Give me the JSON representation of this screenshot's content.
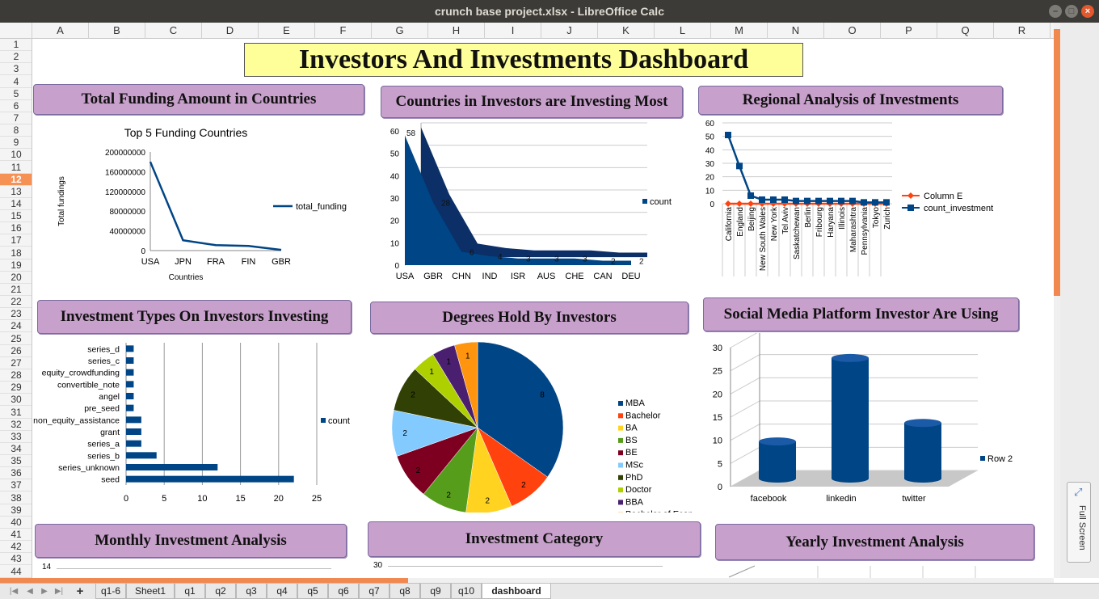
{
  "window": {
    "title": "crunch base project.xlsx - LibreOffice Calc"
  },
  "columns": [
    "A",
    "B",
    "C",
    "D",
    "E",
    "F",
    "G",
    "H",
    "I",
    "J",
    "K",
    "L",
    "M",
    "N",
    "O",
    "P",
    "Q",
    "R"
  ],
  "rows": [
    "1",
    "2",
    "3",
    "4",
    "5",
    "6",
    "7",
    "8",
    "9",
    "10",
    "11",
    "12",
    "13",
    "14",
    "15",
    "16",
    "17",
    "18",
    "19",
    "20",
    "21",
    "22",
    "23",
    "24",
    "25",
    "26",
    "27",
    "28",
    "29",
    "30",
    "31",
    "32",
    "33",
    "34",
    "35",
    "36",
    "37",
    "38",
    "39",
    "40",
    "41",
    "42",
    "43",
    "44"
  ],
  "selected_row": "12",
  "dashboard": {
    "title": "Investors And Investments Dashboard",
    "sections": {
      "total_funding": "Total Funding Amount in Countries",
      "countries_investing": "Countries in Investors are Investing Most",
      "regional": "Regional Analysis of Investments",
      "investment_types": "Investment Types On Investors Investing",
      "degrees": "Degrees Hold By Investors",
      "social_media": "Social Media Platform Investor Are Using",
      "monthly": "Monthly Investment Analysis",
      "category": "Investment Category",
      "yearly": "Yearly Investment Analysis"
    }
  },
  "chart_data": [
    {
      "id": "total_funding",
      "type": "line",
      "title": "Top 5 Funding Countries",
      "xlabel": "Countries",
      "ylabel": "Total fundings",
      "categories": [
        "USA",
        "JPN",
        "FRA",
        "FIN",
        "GBR"
      ],
      "series": [
        {
          "name": "total_funding",
          "values": [
            180000000,
            21000000,
            11000000,
            9500000,
            1500000
          ]
        }
      ],
      "yticks": [
        "0",
        "40000000",
        "80000000",
        "120000000",
        "160000000",
        "200000000"
      ],
      "ylim": [
        0,
        200000000
      ],
      "grid": false,
      "legend": "right",
      "color": "#004586"
    },
    {
      "id": "countries_investing",
      "type": "area",
      "categories": [
        "USA",
        "GBR",
        "CHN",
        "IND",
        "ISR",
        "AUS",
        "CHE",
        "CAN",
        "DEU"
      ],
      "series": [
        {
          "name": "count",
          "values": [
            58,
            28,
            6,
            4,
            3,
            3,
            3,
            2,
            2
          ]
        }
      ],
      "data_labels": [
        "58",
        "28",
        "6",
        "4",
        "3",
        "3",
        "3",
        "2",
        "2"
      ],
      "yticks": [
        "0",
        "10",
        "20",
        "30",
        "40",
        "50",
        "60"
      ],
      "ylim": [
        0,
        60
      ],
      "grid": true,
      "legend": "right",
      "color": "#004586"
    },
    {
      "id": "regional",
      "type": "line",
      "categories": [
        "California",
        "England",
        "Beijing",
        "New South Wales",
        "New York",
        "Tel Aviv",
        "Saskatchewan",
        "Berlin",
        "Fribourg",
        "Haryana",
        "Illinois",
        "Maharashtra",
        "Pennsylvania",
        "Tokyo",
        "Zurich"
      ],
      "series": [
        {
          "name": "Column E",
          "values": [
            0,
            0,
            0,
            0,
            0,
            0,
            0,
            0,
            0,
            0,
            0,
            0,
            0,
            0,
            0
          ],
          "color": "#ff420e"
        },
        {
          "name": "count_investment",
          "values": [
            51,
            28,
            6,
            3,
            3,
            3,
            2,
            2,
            2,
            2,
            2,
            2,
            1,
            1,
            1
          ],
          "color": "#004586"
        }
      ],
      "yticks": [
        "0",
        "10",
        "20",
        "30",
        "40",
        "50",
        "60"
      ],
      "ylim": [
        0,
        60
      ],
      "grid": true,
      "legend": "right"
    },
    {
      "id": "investment_types",
      "type": "bar",
      "orientation": "horizontal",
      "categories": [
        "series_d",
        "series_c",
        "equity_crowdfunding",
        "convertible_note",
        "angel",
        "pre_seed",
        "non_equity_assistance",
        "grant",
        "series_a",
        "series_b",
        "series_unknown",
        "seed"
      ],
      "series": [
        {
          "name": "count",
          "values": [
            1,
            1,
            1,
            1,
            1,
            1,
            2,
            2,
            2,
            4,
            12,
            22
          ]
        }
      ],
      "xticks": [
        "0",
        "5",
        "10",
        "15",
        "20",
        "25"
      ],
      "xlim": [
        0,
        25
      ],
      "grid": true,
      "legend": "right",
      "color": "#004586"
    },
    {
      "id": "degrees",
      "type": "pie",
      "categories": [
        "MBA",
        "Bachelor",
        "BA",
        "BS",
        "BE",
        "MSc",
        "PhD",
        "Doctor",
        "BBA",
        "Bachelor of Economics"
      ],
      "values": [
        8,
        2,
        2,
        2,
        2,
        2,
        2,
        1,
        1,
        1
      ],
      "data_labels": [
        "8",
        "2",
        "2",
        "2",
        "2",
        "2",
        "2",
        "1",
        "1",
        "1"
      ],
      "colors": [
        "#004586",
        "#ff420e",
        "#ffd320",
        "#579d1c",
        "#7e0021",
        "#83caff",
        "#314004",
        "#aecf00",
        "#4b1f6f",
        "#ff950e"
      ],
      "legend": "right"
    },
    {
      "id": "social_media",
      "type": "bar",
      "style": "3d-cylinder",
      "categories": [
        "facebook",
        "linkedin",
        "twitter"
      ],
      "series": [
        {
          "name": "Row 2",
          "values": [
            8,
            26,
            12
          ]
        }
      ],
      "yticks": [
        "0",
        "5",
        "10",
        "15",
        "20",
        "25",
        "30"
      ],
      "ylim": [
        0,
        30
      ],
      "grid": true,
      "legend": "right",
      "color": "#004586"
    }
  ],
  "partial_charts": {
    "monthly_first_tick": "14",
    "category_first_tick": "30"
  },
  "sheet_tabs": [
    "q1-6",
    "Sheet1",
    "q1",
    "q2",
    "q3",
    "q4",
    "q5",
    "q6",
    "q7",
    "q8",
    "q9",
    "q10",
    "dashboard"
  ],
  "active_tab": "dashboard",
  "side_panel": {
    "fullscreen_label": "Full Screen"
  }
}
